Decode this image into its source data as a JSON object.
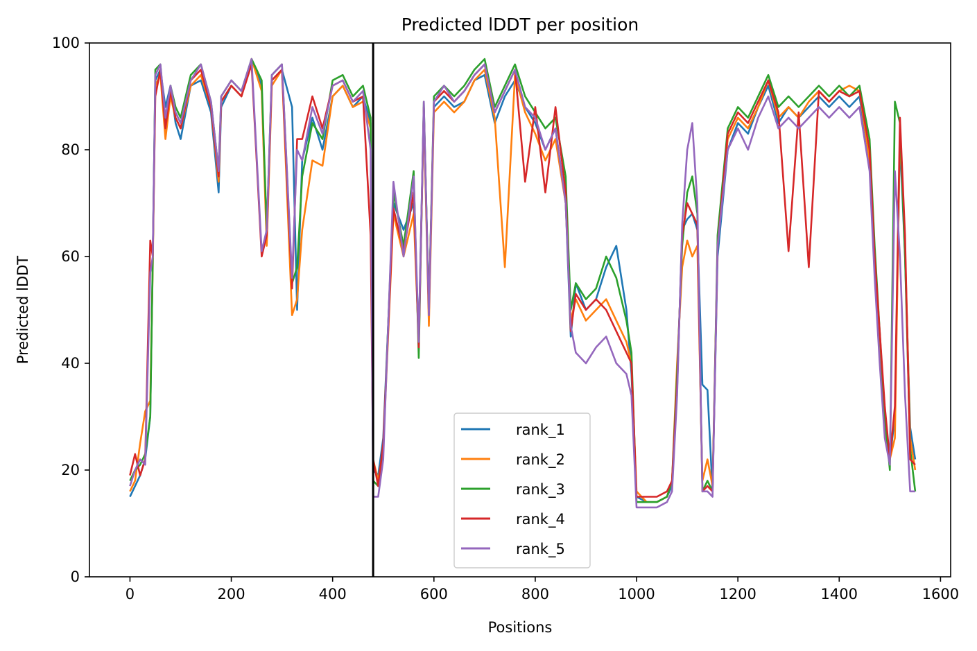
{
  "chart_data": {
    "type": "line",
    "title": "Predicted lDDT per position",
    "xlabel": "Positions",
    "ylabel": "Predicted lDDT",
    "xlim": [
      -80,
      1620
    ],
    "ylim": [
      0,
      100
    ],
    "xticks": [
      0,
      200,
      400,
      600,
      800,
      1000,
      1200,
      1400,
      1600
    ],
    "yticks": [
      0,
      20,
      40,
      60,
      80,
      100
    ],
    "grid": false,
    "legend_position": "lower-center",
    "vertical_line_x": 480,
    "vertical_line_color": "#000000",
    "series": [
      {
        "name": "rank_1",
        "color": "#1f77b4",
        "x": [
          0,
          10,
          20,
          30,
          40,
          45,
          50,
          60,
          70,
          80,
          90,
          100,
          120,
          140,
          160,
          175,
          180,
          200,
          220,
          240,
          260,
          270,
          280,
          300,
          320,
          330,
          340,
          360,
          380,
          400,
          420,
          440,
          460,
          475,
          480,
          490,
          500,
          520,
          540,
          560,
          570,
          580,
          590,
          600,
          620,
          640,
          660,
          680,
          700,
          720,
          740,
          760,
          780,
          800,
          820,
          840,
          860,
          870,
          880,
          900,
          920,
          940,
          960,
          980,
          990,
          1000,
          1020,
          1040,
          1060,
          1070,
          1080,
          1090,
          1100,
          1110,
          1120,
          1130,
          1140,
          1150,
          1160,
          1180,
          1200,
          1220,
          1240,
          1260,
          1280,
          1300,
          1320,
          1340,
          1360,
          1380,
          1400,
          1420,
          1440,
          1460,
          1470,
          1480,
          1490,
          1500,
          1510,
          1520,
          1530,
          1540,
          1550
        ],
        "y": [
          15,
          17,
          19,
          22,
          30,
          60,
          93,
          95,
          88,
          92,
          85,
          82,
          92,
          93,
          87,
          72,
          88,
          92,
          90,
          97,
          92,
          63,
          93,
          95,
          88,
          50,
          78,
          86,
          80,
          90,
          92,
          88,
          90,
          85,
          20,
          19,
          26,
          70,
          65,
          70,
          45,
          88,
          50,
          88,
          90,
          88,
          89,
          93,
          94,
          85,
          90,
          93,
          88,
          85,
          80,
          84,
          70,
          45,
          55,
          50,
          52,
          58,
          62,
          50,
          38,
          15,
          14,
          14,
          15,
          17,
          35,
          65,
          67,
          68,
          65,
          36,
          35,
          16,
          60,
          80,
          85,
          83,
          88,
          92,
          85,
          88,
          86,
          88,
          90,
          88,
          90,
          88,
          90,
          78,
          60,
          45,
          30,
          22,
          30,
          82,
          60,
          28,
          22
        ]
      },
      {
        "name": "rank_2",
        "color": "#ff7f0e",
        "x": [
          0,
          10,
          20,
          30,
          40,
          45,
          50,
          60,
          70,
          80,
          90,
          100,
          120,
          140,
          160,
          175,
          180,
          200,
          220,
          240,
          260,
          270,
          280,
          300,
          320,
          330,
          340,
          360,
          380,
          400,
          420,
          440,
          460,
          475,
          480,
          490,
          500,
          520,
          540,
          560,
          570,
          580,
          590,
          600,
          620,
          640,
          660,
          680,
          700,
          720,
          740,
          760,
          780,
          800,
          820,
          840,
          860,
          870,
          880,
          900,
          920,
          940,
          960,
          980,
          990,
          1000,
          1020,
          1040,
          1060,
          1070,
          1080,
          1090,
          1100,
          1110,
          1120,
          1130,
          1140,
          1150,
          1160,
          1180,
          1200,
          1220,
          1240,
          1260,
          1280,
          1300,
          1320,
          1340,
          1360,
          1380,
          1400,
          1420,
          1440,
          1460,
          1470,
          1480,
          1490,
          1500,
          1510,
          1520,
          1530,
          1540,
          1550
        ],
        "y": [
          16,
          18,
          25,
          31,
          33,
          58,
          92,
          94,
          82,
          90,
          86,
          84,
          92,
          94,
          88,
          74,
          89,
          92,
          90,
          97,
          91,
          62,
          92,
          95,
          49,
          52,
          65,
          78,
          77,
          90,
          92,
          88,
          89,
          84,
          22,
          18,
          24,
          68,
          60,
          68,
          44,
          87,
          47,
          87,
          89,
          87,
          89,
          93,
          95,
          86,
          58,
          94,
          87,
          83,
          78,
          82,
          70,
          48,
          52,
          48,
          50,
          52,
          48,
          44,
          40,
          16,
          14,
          14,
          15,
          18,
          40,
          58,
          63,
          60,
          62,
          18,
          22,
          17,
          62,
          82,
          86,
          84,
          88,
          93,
          86,
          88,
          86,
          89,
          91,
          89,
          91,
          92,
          91,
          78,
          58,
          42,
          28,
          22,
          26,
          84,
          62,
          26,
          20
        ]
      },
      {
        "name": "rank_3",
        "color": "#2ca02c",
        "x": [
          0,
          10,
          20,
          30,
          40,
          45,
          50,
          60,
          70,
          80,
          90,
          100,
          120,
          140,
          160,
          175,
          180,
          200,
          220,
          240,
          260,
          270,
          280,
          300,
          320,
          330,
          340,
          360,
          380,
          400,
          420,
          440,
          460,
          475,
          480,
          490,
          500,
          520,
          540,
          560,
          570,
          580,
          590,
          600,
          620,
          640,
          660,
          680,
          700,
          720,
          740,
          760,
          780,
          800,
          820,
          840,
          860,
          870,
          880,
          900,
          920,
          940,
          960,
          980,
          990,
          1000,
          1020,
          1040,
          1060,
          1070,
          1080,
          1090,
          1100,
          1110,
          1120,
          1130,
          1140,
          1150,
          1160,
          1180,
          1200,
          1220,
          1240,
          1260,
          1280,
          1300,
          1320,
          1340,
          1360,
          1380,
          1400,
          1420,
          1440,
          1460,
          1470,
          1480,
          1490,
          1500,
          1510,
          1520,
          1530,
          1540,
          1550
        ],
        "y": [
          18,
          20,
          21,
          23,
          30,
          59,
          95,
          96,
          85,
          92,
          88,
          86,
          94,
          96,
          89,
          76,
          90,
          93,
          91,
          97,
          93,
          65,
          94,
          96,
          55,
          58,
          75,
          85,
          82,
          93,
          94,
          90,
          92,
          86,
          18,
          17,
          24,
          72,
          62,
          76,
          41,
          89,
          50,
          90,
          92,
          90,
          92,
          95,
          97,
          88,
          92,
          96,
          90,
          87,
          84,
          86,
          75,
          50,
          55,
          52,
          54,
          60,
          56,
          48,
          42,
          14,
          14,
          14,
          15,
          18,
          38,
          62,
          72,
          75,
          68,
          16,
          18,
          16,
          64,
          84,
          88,
          86,
          90,
          94,
          88,
          90,
          88,
          90,
          92,
          90,
          92,
          90,
          92,
          82,
          62,
          46,
          30,
          20,
          89,
          85,
          60,
          24,
          16
        ]
      },
      {
        "name": "rank_4",
        "color": "#d62728",
        "x": [
          0,
          10,
          20,
          30,
          40,
          45,
          50,
          60,
          70,
          80,
          90,
          100,
          120,
          140,
          160,
          175,
          180,
          200,
          220,
          240,
          260,
          270,
          280,
          300,
          320,
          330,
          340,
          360,
          380,
          400,
          420,
          440,
          460,
          475,
          480,
          490,
          500,
          520,
          540,
          560,
          570,
          580,
          590,
          600,
          620,
          640,
          660,
          680,
          700,
          720,
          740,
          760,
          780,
          800,
          820,
          840,
          860,
          870,
          880,
          900,
          920,
          940,
          960,
          980,
          990,
          1000,
          1020,
          1040,
          1060,
          1070,
          1080,
          1090,
          1100,
          1110,
          1120,
          1130,
          1140,
          1150,
          1160,
          1180,
          1200,
          1220,
          1240,
          1260,
          1280,
          1300,
          1320,
          1340,
          1360,
          1380,
          1400,
          1420,
          1440,
          1460,
          1470,
          1480,
          1490,
          1500,
          1510,
          1520,
          1530,
          1540,
          1550
        ],
        "y": [
          19,
          23,
          19,
          22,
          63,
          60,
          90,
          95,
          84,
          91,
          86,
          84,
          93,
          95,
          88,
          75,
          89,
          92,
          90,
          96,
          60,
          64,
          93,
          95,
          54,
          82,
          82,
          90,
          84,
          92,
          93,
          89,
          90,
          64,
          22,
          17,
          25,
          69,
          61,
          72,
          43,
          88,
          49,
          89,
          91,
          89,
          91,
          94,
          96,
          87,
          91,
          95,
          74,
          88,
          72,
          88,
          72,
          46,
          53,
          50,
          52,
          50,
          46,
          42,
          40,
          15,
          15,
          15,
          16,
          18,
          36,
          64,
          70,
          68,
          66,
          16,
          17,
          16,
          62,
          83,
          87,
          85,
          89,
          93,
          87,
          61,
          87,
          58,
          91,
          89,
          91,
          90,
          91,
          80,
          60,
          46,
          32,
          22,
          32,
          86,
          64,
          22,
          21
        ]
      },
      {
        "name": "rank_5",
        "color": "#9467bd",
        "x": [
          0,
          10,
          20,
          30,
          40,
          45,
          50,
          60,
          70,
          80,
          90,
          100,
          120,
          140,
          160,
          175,
          180,
          200,
          220,
          240,
          260,
          270,
          280,
          300,
          320,
          330,
          340,
          360,
          380,
          400,
          420,
          440,
          460,
          475,
          480,
          490,
          500,
          520,
          540,
          560,
          570,
          580,
          590,
          600,
          620,
          640,
          660,
          680,
          700,
          720,
          740,
          760,
          780,
          800,
          820,
          840,
          860,
          870,
          880,
          900,
          920,
          940,
          960,
          980,
          990,
          1000,
          1020,
          1040,
          1060,
          1070,
          1080,
          1090,
          1100,
          1110,
          1120,
          1130,
          1140,
          1150,
          1160,
          1180,
          1200,
          1220,
          1240,
          1260,
          1280,
          1300,
          1320,
          1340,
          1360,
          1380,
          1400,
          1420,
          1440,
          1460,
          1470,
          1480,
          1490,
          1500,
          1510,
          1520,
          1530,
          1540,
          1550
        ],
        "y": [
          17,
          20,
          22,
          21,
          57,
          60,
          94,
          96,
          86,
          92,
          87,
          85,
          93,
          96,
          89,
          76,
          90,
          93,
          91,
          97,
          61,
          65,
          94,
          96,
          56,
          80,
          78,
          88,
          83,
          92,
          93,
          89,
          91,
          80,
          15,
          15,
          22,
          74,
          60,
          75,
          44,
          89,
          49,
          89,
          92,
          89,
          91,
          94,
          96,
          87,
          91,
          95,
          88,
          86,
          80,
          84,
          70,
          47,
          42,
          40,
          43,
          45,
          40,
          38,
          34,
          13,
          13,
          13,
          14,
          16,
          34,
          66,
          80,
          85,
          70,
          16,
          16,
          15,
          62,
          80,
          84,
          80,
          86,
          90,
          84,
          86,
          84,
          86,
          88,
          86,
          88,
          86,
          88,
          76,
          56,
          40,
          26,
          21,
          76,
          60,
          34,
          16,
          16
        ]
      }
    ]
  }
}
